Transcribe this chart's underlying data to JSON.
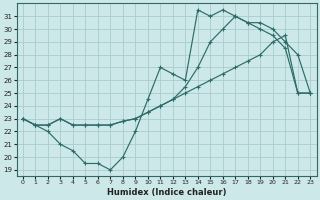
{
  "xlabel": "Humidex (Indice chaleur)",
  "background_color": "#cde8e8",
  "grid_color": "#aacccc",
  "line_color": "#2d6b6b",
  "xlim": [
    -0.5,
    23.5
  ],
  "ylim": [
    18.5,
    32.0
  ],
  "xticks": [
    0,
    1,
    2,
    3,
    4,
    5,
    6,
    7,
    8,
    9,
    10,
    11,
    12,
    13,
    14,
    15,
    16,
    17,
    18,
    19,
    20,
    21,
    22,
    23
  ],
  "yticks": [
    19,
    20,
    21,
    22,
    23,
    24,
    25,
    26,
    27,
    28,
    29,
    30,
    31
  ],
  "curve_dip_y": [
    23,
    22.5,
    22,
    21,
    20.5,
    19.5,
    19.5,
    19,
    20,
    22,
    24.5,
    27,
    26.5,
    26,
    31.5,
    31,
    31.5,
    31,
    30.5,
    30,
    29.5,
    28.5,
    25,
    25
  ],
  "curve_diag_y": [
    23,
    22.5,
    22.5,
    23,
    22.5,
    22.5,
    22.5,
    22.5,
    22.8,
    23,
    23.5,
    24,
    24.5,
    25,
    25.5,
    26,
    26.5,
    27,
    27.5,
    28,
    29,
    29.5,
    25,
    25
  ],
  "curve_top_y": [
    23,
    22.5,
    22.5,
    23,
    22.5,
    22.5,
    22.5,
    22.5,
    22.8,
    23,
    23.5,
    24,
    24.5,
    25.5,
    27,
    29,
    30,
    31,
    30.5,
    30.5,
    30,
    29,
    28,
    25
  ]
}
